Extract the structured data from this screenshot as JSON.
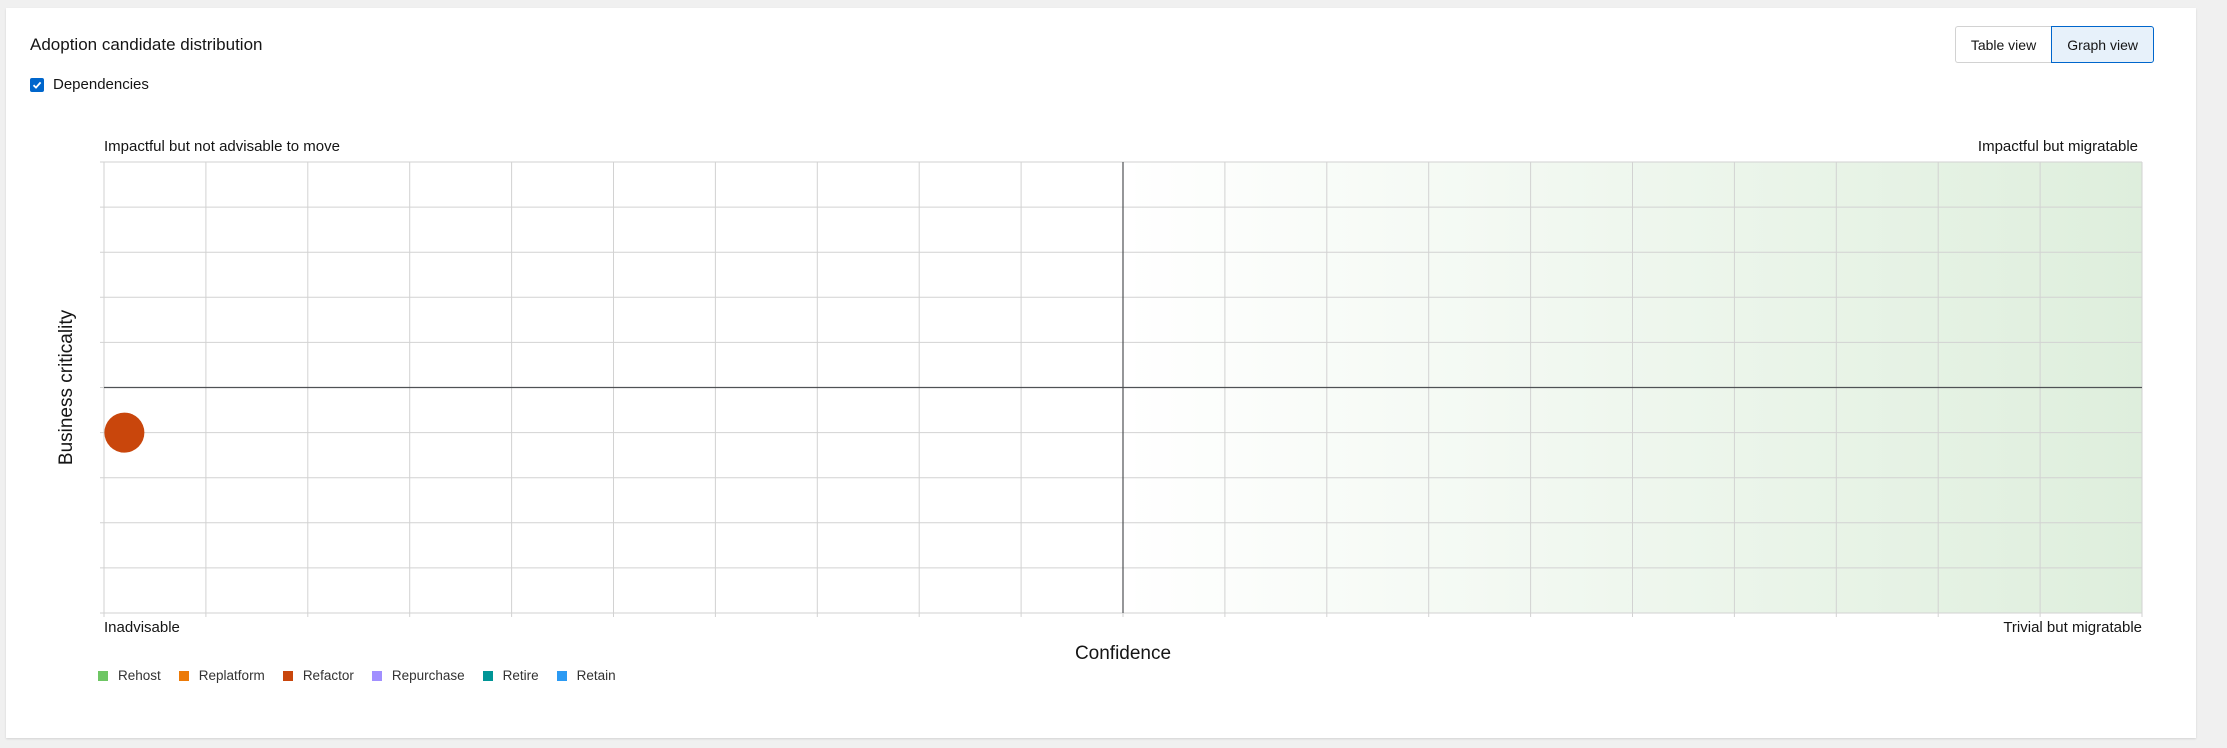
{
  "header": {
    "title": "Adoption candidate distribution"
  },
  "view_toggle": {
    "table_label": "Table view",
    "graph_label": "Graph view",
    "selected": "Graph view"
  },
  "filter": {
    "dependencies_label": "Dependencies",
    "dependencies_checked": true
  },
  "chart_data": {
    "type": "scatter",
    "xlabel": "Confidence",
    "ylabel": "Business criticality",
    "xlim": [
      0,
      100
    ],
    "ylim": [
      0,
      10
    ],
    "grid": true,
    "quadrant_labels": {
      "top_left": "Impactful but not advisable to move",
      "top_right": "Impactful but migratable",
      "bottom_left": "Inadvisable",
      "bottom_right": "Trivial but migratable"
    },
    "legend_placement": "bottom-left",
    "series": [
      {
        "name": "Rehost",
        "color": "#6ec664",
        "points": []
      },
      {
        "name": "Replatform",
        "color": "#ec7a08",
        "points": []
      },
      {
        "name": "Refactor",
        "color": "#c9460c",
        "points": [
          {
            "x": 1,
            "y": 4
          }
        ]
      },
      {
        "name": "Repurchase",
        "color": "#a18fff",
        "points": []
      },
      {
        "name": "Retire",
        "color": "#009596",
        "points": []
      },
      {
        "name": "Retain",
        "color": "#2b9af3",
        "points": []
      }
    ]
  }
}
